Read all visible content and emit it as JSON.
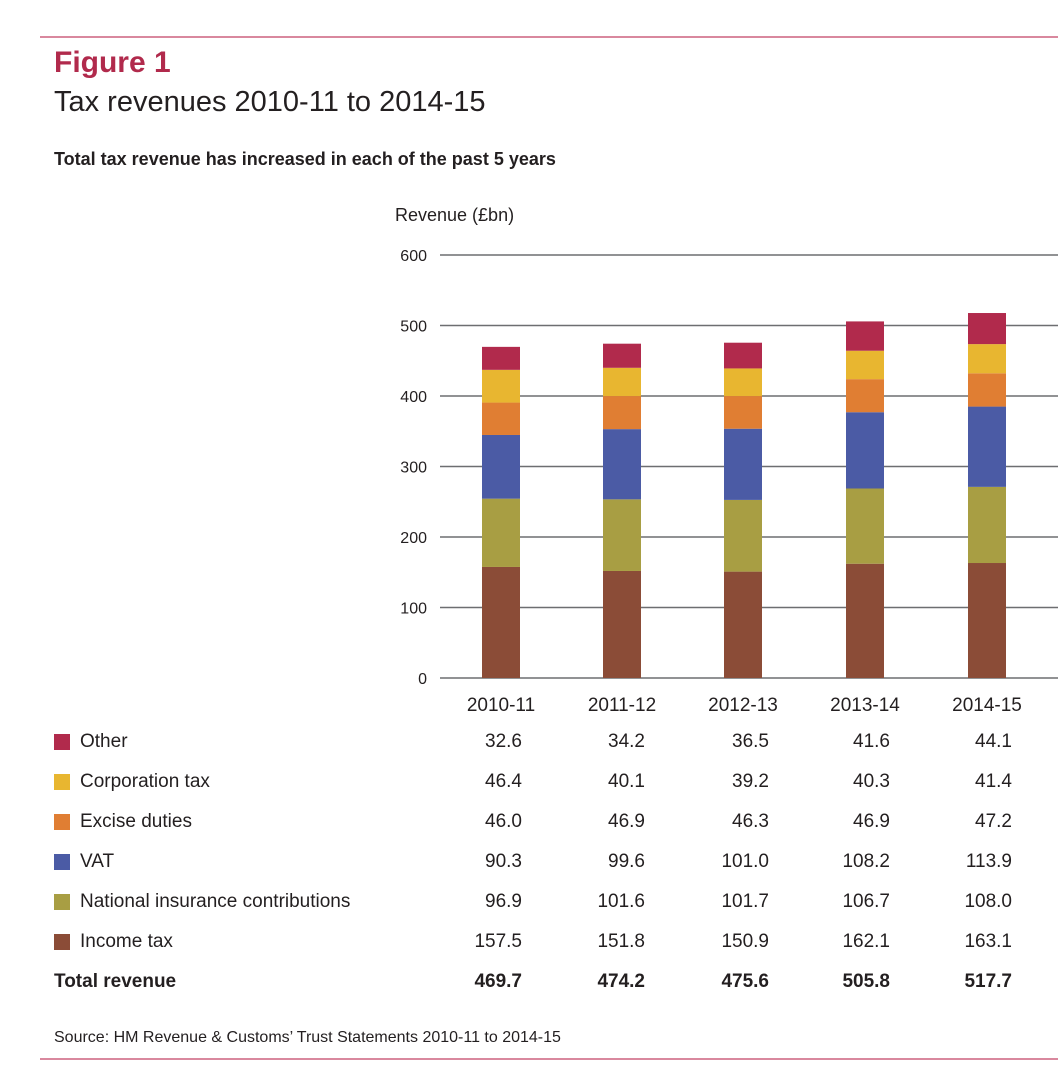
{
  "figure": {
    "label": "Figure 1",
    "title": "Tax revenues 2010-11 to 2014-15",
    "subtitle": "Total tax revenue has increased in each of the past 5 years",
    "source": "Source: HM Revenue & Customs’ Trust Statements 2010-11 to 2014-15",
    "accent_color": "#b12a4c"
  },
  "chart_data": {
    "type": "bar",
    "stacked": true,
    "title": "Tax revenues 2010-11 to 2014-15",
    "subtitle": "Total tax revenue has increased in each of the past 5 years",
    "xlabel": "",
    "ylabel": "Revenue (£bn)",
    "ylim": [
      0,
      600
    ],
    "yticks": [
      "0",
      "100",
      "200",
      "300",
      "400",
      "500",
      "600"
    ],
    "grid": true,
    "legend_position": "bottom-left",
    "categories": [
      "2010-11",
      "2011-12",
      "2012-13",
      "2013-14",
      "2014-15"
    ],
    "series": [
      {
        "name": "Income tax",
        "color": "#8b4c37",
        "values": [
          157.5,
          151.8,
          150.9,
          162.1,
          163.1
        ],
        "labels": [
          "157.5",
          "151.8",
          "150.9",
          "162.1",
          "163.1"
        ]
      },
      {
        "name": "National insurance contributions",
        "color": "#a89e43",
        "values": [
          96.9,
          101.6,
          101.7,
          106.7,
          108.0
        ],
        "labels": [
          "96.9",
          "101.6",
          "101.7",
          "106.7",
          "108.0"
        ]
      },
      {
        "name": "VAT",
        "color": "#4b5ba5",
        "values": [
          90.3,
          99.6,
          101.0,
          108.2,
          113.9
        ],
        "labels": [
          "90.3",
          "99.6",
          "101.0",
          "108.2",
          "113.9"
        ]
      },
      {
        "name": "Excise duties",
        "color": "#e07e33",
        "values": [
          46.0,
          46.9,
          46.3,
          46.9,
          47.2
        ],
        "labels": [
          "46.0",
          "46.9",
          "46.3",
          "46.9",
          "47.2"
        ]
      },
      {
        "name": "Corporation tax",
        "color": "#e8b630",
        "values": [
          46.4,
          40.1,
          39.2,
          40.3,
          41.4
        ],
        "labels": [
          "46.4",
          "40.1",
          "39.2",
          "40.3",
          "41.4"
        ]
      },
      {
        "name": "Other",
        "color": "#b12a4c",
        "values": [
          32.6,
          34.2,
          36.5,
          41.6,
          44.1
        ],
        "labels": [
          "32.6",
          "34.2",
          "36.5",
          "41.6",
          "44.1"
        ]
      }
    ],
    "totals": {
      "name": "Total revenue",
      "values": [
        469.7,
        474.2,
        475.6,
        505.8,
        517.7
      ],
      "labels": [
        "469.7",
        "474.2",
        "475.6",
        "505.8",
        "517.7"
      ]
    }
  }
}
